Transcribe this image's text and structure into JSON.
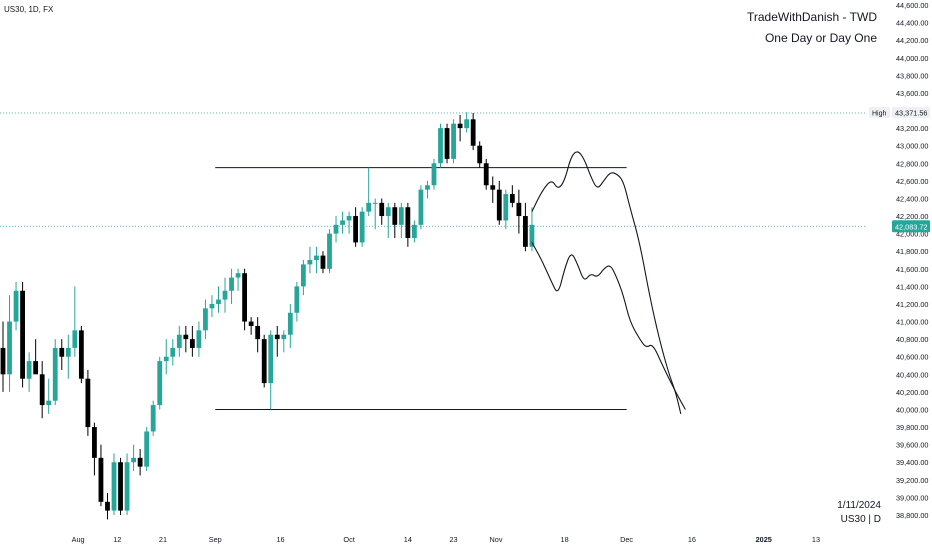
{
  "header": {
    "symbol_line": "US30, 1D, FX",
    "brand_title": "TradeWithDanish - TWD",
    "brand_subtitle": "One Day or Day One"
  },
  "footer": {
    "date": "1/11/2024",
    "symbol_timeframe": "US30 | D"
  },
  "colors": {
    "up": "#26a69a",
    "down": "#000000",
    "price_line": "#26a69a",
    "high_line": "#2aa5a0",
    "level_line": "#131722",
    "axis_text": "#131722",
    "background": "#ffffff"
  },
  "chart_data": {
    "type": "candlestick",
    "ylim": [
      38700,
      44650
    ],
    "y_ticks": [
      38800,
      39000,
      39200,
      39400,
      39600,
      39800,
      40000,
      40200,
      40400,
      40600,
      40800,
      41000,
      41200,
      41400,
      41600,
      41800,
      42000,
      42200,
      42400,
      42600,
      42800,
      43000,
      43200,
      43400,
      43600,
      43800,
      44000,
      44200,
      44400,
      44600
    ],
    "y_tick_labels": [
      "38,800.00",
      "39,000.00",
      "39,200.00",
      "39,400.00",
      "39,600.00",
      "39,800.00",
      "40,000.00",
      "40,200.00",
      "40,400.00",
      "40,600.00",
      "40,800.00",
      "41,000.00",
      "41,200.00",
      "41,400.00",
      "41,600.00",
      "41,800.00",
      "42,000.00",
      "42,200.00",
      "42,400.00",
      "42,600.00",
      "42,800.00",
      "43,000.00",
      "43,200.00",
      "43,400.00",
      "43,600.00",
      "43,800.00",
      "44,000.00",
      "44,200.00",
      "44,400.00",
      "44,600.00"
    ],
    "x_ticks": [
      {
        "label": "Aug",
        "bar": 11.5
      },
      {
        "label": "12",
        "bar": 17.5
      },
      {
        "label": "21",
        "bar": 24.5
      },
      {
        "label": "Sep",
        "bar": 32.5
      },
      {
        "label": "16",
        "bar": 42.5
      },
      {
        "label": "Oct",
        "bar": 53
      },
      {
        "label": "14",
        "bar": 62
      },
      {
        "label": "23",
        "bar": 69
      },
      {
        "label": "Nov",
        "bar": 75.5
      },
      {
        "label": "18",
        "bar": 86
      },
      {
        "label": "Dec",
        "bar": 95.5
      },
      {
        "label": "16",
        "bar": 105.5
      },
      {
        "label": "2025",
        "bar": 116.5
      },
      {
        "label": "13",
        "bar": 124.5
      }
    ],
    "candles": [
      {
        "o": 40700,
        "h": 41000,
        "l": 40200,
        "c": 40400
      },
      {
        "o": 40400,
        "h": 41300,
        "l": 40200,
        "c": 41000
      },
      {
        "o": 41000,
        "h": 41450,
        "l": 40900,
        "c": 41350
      },
      {
        "o": 41350,
        "h": 41450,
        "l": 40250,
        "c": 40350
      },
      {
        "o": 40350,
        "h": 40650,
        "l": 40200,
        "c": 40550
      },
      {
        "o": 40550,
        "h": 40800,
        "l": 40450,
        "c": 40400
      },
      {
        "o": 40400,
        "h": 40550,
        "l": 39900,
        "c": 40050
      },
      {
        "o": 40050,
        "h": 40350,
        "l": 39950,
        "c": 40100
      },
      {
        "o": 40100,
        "h": 40800,
        "l": 40050,
        "c": 40700
      },
      {
        "o": 40700,
        "h": 40800,
        "l": 40450,
        "c": 40600
      },
      {
        "o": 40600,
        "h": 40850,
        "l": 40350,
        "c": 40700
      },
      {
        "o": 40700,
        "h": 41400,
        "l": 40600,
        "c": 40900
      },
      {
        "o": 40900,
        "h": 40950,
        "l": 40300,
        "c": 40350
      },
      {
        "o": 40350,
        "h": 40450,
        "l": 39700,
        "c": 39800
      },
      {
        "o": 39800,
        "h": 39850,
        "l": 39250,
        "c": 39450
      },
      {
        "o": 39450,
        "h": 39600,
        "l": 38900,
        "c": 38950
      },
      {
        "o": 38950,
        "h": 39050,
        "l": 38750,
        "c": 38850
      },
      {
        "o": 38850,
        "h": 39500,
        "l": 38800,
        "c": 39400
      },
      {
        "o": 39400,
        "h": 39450,
        "l": 38800,
        "c": 38850
      },
      {
        "o": 38850,
        "h": 39500,
        "l": 38800,
        "c": 39400
      },
      {
        "o": 39400,
        "h": 39600,
        "l": 39300,
        "c": 39450
      },
      {
        "o": 39450,
        "h": 39550,
        "l": 39250,
        "c": 39350
      },
      {
        "o": 39350,
        "h": 39800,
        "l": 39300,
        "c": 39750
      },
      {
        "o": 39750,
        "h": 40100,
        "l": 39700,
        "c": 40050
      },
      {
        "o": 40050,
        "h": 40600,
        "l": 40000,
        "c": 40550
      },
      {
        "o": 40550,
        "h": 40800,
        "l": 40400,
        "c": 40600
      },
      {
        "o": 40600,
        "h": 40800,
        "l": 40500,
        "c": 40700
      },
      {
        "o": 40700,
        "h": 40950,
        "l": 40600,
        "c": 40850
      },
      {
        "o": 40850,
        "h": 40950,
        "l": 40650,
        "c": 40800
      },
      {
        "o": 40800,
        "h": 40950,
        "l": 40600,
        "c": 40700
      },
      {
        "o": 40700,
        "h": 41000,
        "l": 40600,
        "c": 40900
      },
      {
        "o": 40900,
        "h": 41250,
        "l": 40800,
        "c": 41150
      },
      {
        "o": 41150,
        "h": 41300,
        "l": 41050,
        "c": 41200
      },
      {
        "o": 41200,
        "h": 41400,
        "l": 41100,
        "c": 41250
      },
      {
        "o": 41250,
        "h": 41500,
        "l": 41100,
        "c": 41350
      },
      {
        "o": 41350,
        "h": 41600,
        "l": 41200,
        "c": 41500
      },
      {
        "o": 41500,
        "h": 41600,
        "l": 41350,
        "c": 41550
      },
      {
        "o": 41550,
        "h": 41600,
        "l": 40900,
        "c": 41000
      },
      {
        "o": 41000,
        "h": 41050,
        "l": 40850,
        "c": 40950
      },
      {
        "o": 40950,
        "h": 41050,
        "l": 40650,
        "c": 40800
      },
      {
        "o": 40800,
        "h": 40850,
        "l": 40250,
        "c": 40300
      },
      {
        "o": 40300,
        "h": 40900,
        "l": 40000,
        "c": 40850
      },
      {
        "o": 40850,
        "h": 40950,
        "l": 40600,
        "c": 40800
      },
      {
        "o": 40800,
        "h": 40900,
        "l": 40650,
        "c": 40850
      },
      {
        "o": 40850,
        "h": 41200,
        "l": 40700,
        "c": 41100
      },
      {
        "o": 41100,
        "h": 41450,
        "l": 41000,
        "c": 41400
      },
      {
        "o": 41400,
        "h": 41700,
        "l": 41300,
        "c": 41650
      },
      {
        "o": 41650,
        "h": 41850,
        "l": 41550,
        "c": 41700
      },
      {
        "o": 41700,
        "h": 41850,
        "l": 41550,
        "c": 41750
      },
      {
        "o": 41750,
        "h": 41800,
        "l": 41550,
        "c": 41600
      },
      {
        "o": 41600,
        "h": 42050,
        "l": 41550,
        "c": 42000
      },
      {
        "o": 42000,
        "h": 42200,
        "l": 41900,
        "c": 42100
      },
      {
        "o": 42100,
        "h": 42250,
        "l": 42000,
        "c": 42150
      },
      {
        "o": 42150,
        "h": 42250,
        "l": 42000,
        "c": 42200
      },
      {
        "o": 42200,
        "h": 42300,
        "l": 41850,
        "c": 41900
      },
      {
        "o": 41900,
        "h": 42300,
        "l": 41850,
        "c": 42250
      },
      {
        "o": 42250,
        "h": 42750,
        "l": 42200,
        "c": 42350
      },
      {
        "o": 42350,
        "h": 42400,
        "l": 42050,
        "c": 42350
      },
      {
        "o": 42350,
        "h": 42400,
        "l": 42100,
        "c": 42200
      },
      {
        "o": 42200,
        "h": 42350,
        "l": 41950,
        "c": 42300
      },
      {
        "o": 42300,
        "h": 42350,
        "l": 41950,
        "c": 42100
      },
      {
        "o": 42100,
        "h": 42350,
        "l": 41950,
        "c": 42300
      },
      {
        "o": 42300,
        "h": 42350,
        "l": 41850,
        "c": 41950
      },
      {
        "o": 41950,
        "h": 42150,
        "l": 41900,
        "c": 42100
      },
      {
        "o": 42100,
        "h": 42550,
        "l": 42050,
        "c": 42500
      },
      {
        "o": 42500,
        "h": 42600,
        "l": 42400,
        "c": 42550
      },
      {
        "o": 42550,
        "h": 42850,
        "l": 42500,
        "c": 42800
      },
      {
        "o": 42800,
        "h": 43250,
        "l": 42750,
        "c": 43200
      },
      {
        "o": 43200,
        "h": 43250,
        "l": 42800,
        "c": 42850
      },
      {
        "o": 42850,
        "h": 43300,
        "l": 42800,
        "c": 43250
      },
      {
        "o": 43250,
        "h": 43350,
        "l": 43050,
        "c": 43200
      },
      {
        "o": 43200,
        "h": 43380,
        "l": 43150,
        "c": 43300
      },
      {
        "o": 43300,
        "h": 43372,
        "l": 42950,
        "c": 43000
      },
      {
        "o": 43000,
        "h": 43050,
        "l": 42750,
        "c": 42800
      },
      {
        "o": 42800,
        "h": 42850,
        "l": 42500,
        "c": 42550
      },
      {
        "o": 42550,
        "h": 42650,
        "l": 42350,
        "c": 42500
      },
      {
        "o": 42500,
        "h": 42600,
        "l": 42100,
        "c": 42150
      },
      {
        "o": 42150,
        "h": 42500,
        "l": 42050,
        "c": 42450
      },
      {
        "o": 42450,
        "h": 42550,
        "l": 42300,
        "c": 42350
      },
      {
        "o": 42350,
        "h": 42500,
        "l": 42000,
        "c": 42200
      },
      {
        "o": 42200,
        "h": 42350,
        "l": 41800,
        "c": 41850
      },
      {
        "o": 41850,
        "h": 42300,
        "l": 41800,
        "c": 42100
      }
    ],
    "current_price": 42083.72,
    "current_price_label": "42,083.72",
    "high": 43371.56,
    "high_label": "High",
    "high_value_label": "43,371.56",
    "resistance_level": 42750,
    "support_level": 40000,
    "levels_start_bar": 32.5,
    "levels_end_bar": 95.5,
    "projections": [
      [
        [
          81,
          42250
        ],
        [
          82.5,
          42480
        ],
        [
          84,
          42620
        ],
        [
          85,
          42500
        ],
        [
          86,
          42600
        ],
        [
          87,
          42880
        ],
        [
          88,
          42950
        ],
        [
          89,
          42850
        ],
        [
          90,
          42650
        ],
        [
          91,
          42500
        ],
        [
          92,
          42600
        ],
        [
          93,
          42700
        ],
        [
          94,
          42680
        ],
        [
          95,
          42600
        ],
        [
          96,
          42300
        ],
        [
          97.5,
          41900
        ],
        [
          99,
          41300
        ],
        [
          100.5,
          40800
        ],
        [
          102,
          40400
        ],
        [
          103,
          40200
        ],
        [
          103.8,
          39950
        ]
      ],
      [
        [
          81,
          41900
        ],
        [
          82.5,
          41700
        ],
        [
          84,
          41450
        ],
        [
          85,
          41300
        ],
        [
          86,
          41600
        ],
        [
          87,
          41800
        ],
        [
          88,
          41650
        ],
        [
          89,
          41450
        ],
        [
          90,
          41550
        ],
        [
          91,
          41500
        ],
        [
          92,
          41600
        ],
        [
          93,
          41650
        ],
        [
          94,
          41500
        ],
        [
          95,
          41300
        ],
        [
          96,
          41000
        ],
        [
          97.5,
          40800
        ],
        [
          98.5,
          40700
        ],
        [
          99.5,
          40750
        ],
        [
          101,
          40500
        ],
        [
          103,
          40200
        ],
        [
          104.5,
          40000
        ]
      ]
    ]
  }
}
